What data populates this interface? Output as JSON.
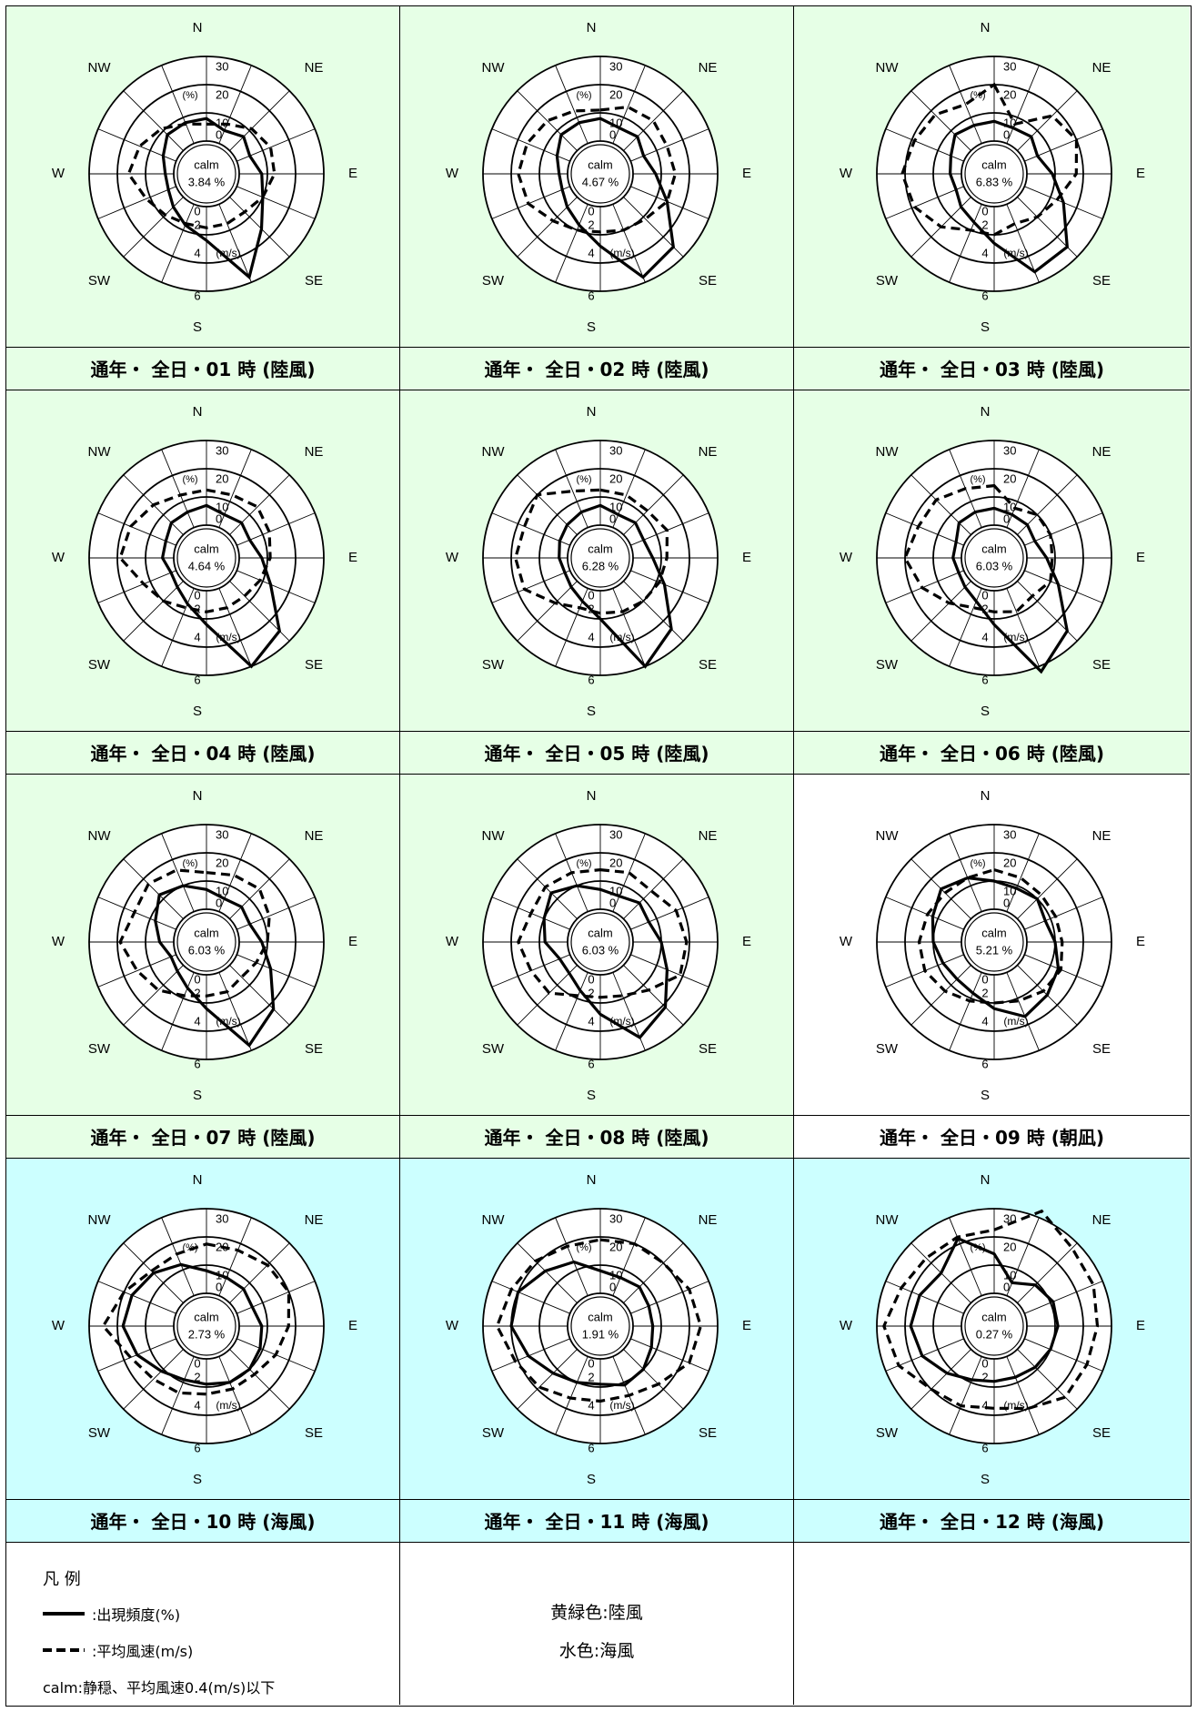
{
  "colors": {
    "land_breeze_bg": "#E6FFE6",
    "sea_breeze_bg": "#CCFFFF",
    "calm_bg": "#FFFFFF",
    "line": "#000000"
  },
  "labels": {
    "N": "N",
    "NE": "NE",
    "E": "E",
    "SE": "SE",
    "S": "S",
    "SW": "SW",
    "W": "W",
    "NW": "NW",
    "freq_ticks": [
      "0",
      "10",
      "20",
      "30"
    ],
    "speed_ticks": [
      "0",
      "2",
      "4",
      "6"
    ],
    "freq_unit": "(%)",
    "speed_unit": "(m/s)",
    "calm": "calm"
  },
  "chart_data": [
    {
      "type": "radar",
      "title": "通年・ 全日・01 時 (陸風)",
      "bg": "land",
      "calm": "3.84 %",
      "freq": [
        8,
        5,
        7,
        5,
        8,
        10,
        16,
        28,
        12,
        8,
        5,
        3,
        3,
        5,
        8,
        8
      ],
      "speed": [
        1.2,
        1.5,
        2.2,
        2.6,
        2.5,
        2.0,
        1.5,
        1.5,
        1.5,
        1.5,
        1.8,
        2.3,
        3.2,
        2.8,
        2.2,
        1.5
      ]
    },
    {
      "type": "radar",
      "title": "通年・ 全日・02 時 (陸風)",
      "bg": "land",
      "calm": "4.67 %",
      "freq": [
        8,
        6,
        7,
        5,
        8,
        14,
        25,
        28,
        14,
        8,
        5,
        3,
        3,
        5,
        8,
        8
      ],
      "speed": [
        2.2,
        2.8,
        3.0,
        2.8,
        3.0,
        2.8,
        2.2,
        2.0,
        1.8,
        2.0,
        2.4,
        3.2,
        3.5,
        3.3,
        3.0,
        2.5
      ]
    },
    {
      "type": "radar",
      "title": "通年・ 全日・03 時 (陸風)",
      "bg": "land",
      "calm": "6.83 %",
      "freq": [
        7,
        6,
        7,
        5,
        9,
        15,
        25,
        26,
        13,
        7,
        5,
        3,
        4,
        5,
        8,
        7
      ],
      "speed": [
        4.0,
        1.5,
        3.5,
        4.0,
        3.5,
        2.5,
        2.0,
        1.5,
        2.0,
        2.0,
        3.0,
        3.8,
        4.2,
        3.8,
        3.6,
        3.0
      ]
    },
    {
      "type": "radar",
      "title": "通年・ 全日・04 時 (陸風)",
      "bg": "land",
      "calm": "4.64 %",
      "freq": [
        7,
        5,
        6,
        5,
        8,
        13,
        25,
        30,
        12,
        6,
        3,
        2,
        4,
        4,
        6,
        6
      ],
      "speed": [
        2.5,
        2.5,
        2.8,
        2.5,
        2.2,
        1.8,
        1.5,
        1.5,
        1.5,
        1.5,
        2.0,
        2.5,
        3.8,
        3.5,
        3.0,
        2.5
      ]
    },
    {
      "type": "radar",
      "title": "通年・ 全日・05 時 (陸風)",
      "bg": "land",
      "calm": "6.28 %",
      "freq": [
        7,
        5,
        6,
        5,
        7,
        13,
        24,
        30,
        10,
        5,
        3,
        2,
        3,
        4,
        5,
        6
      ],
      "speed": [
        2.5,
        2.5,
        2.4,
        2.8,
        2.4,
        2.2,
        2.0,
        1.8,
        1.6,
        1.5,
        2.2,
        3.5,
        3.7,
        3.5,
        4.0,
        2.8
      ]
    },
    {
      "type": "radar",
      "title": "通年・ 全日・06 時 (陸風)",
      "bg": "land",
      "calm": "6.03 %",
      "freq": [
        6,
        5,
        5,
        4,
        7,
        13,
        25,
        32,
        12,
        5,
        3,
        2,
        3,
        3,
        6,
        6
      ],
      "speed": [
        2.8,
        1.5,
        2.0,
        2.0,
        1.8,
        2.0,
        1.5,
        1.8,
        1.5,
        1.5,
        2.2,
        3.2,
        4.0,
        3.5,
        3.5,
        3.0
      ]
    },
    {
      "type": "radar",
      "title": "通年・ 全日・07 時 (陸風)",
      "bg": "land",
      "calm": "6.03 %",
      "freq": [
        7,
        5,
        6,
        5,
        8,
        13,
        22,
        28,
        12,
        6,
        3,
        2,
        5,
        8,
        12,
        10
      ],
      "speed": [
        2.6,
        2.8,
        3.0,
        2.5,
        2.0,
        1.5,
        1.2,
        1.5,
        1.5,
        1.8,
        2.5,
        3.0,
        3.8,
        3.2,
        3.5,
        3.2
      ]
    },
    {
      "type": "radar",
      "title": "通年・ 全日・08 時 (陸風)",
      "bg": "land",
      "calm": "6.03 %",
      "freq": [
        7,
        6,
        8,
        7,
        10,
        14,
        21,
        25,
        14,
        7,
        4,
        4,
        8,
        10,
        13,
        10
      ],
      "speed": [
        2.8,
        3.0,
        2.8,
        3.5,
        3.8,
        3.8,
        2.5,
        1.8,
        1.6,
        1.8,
        2.8,
        3.0,
        3.5,
        3.0,
        3.2,
        3.0
      ]
    },
    {
      "type": "radar",
      "title": "通年・ 全日・09 時 (朝凪)",
      "bg": "calm",
      "calm": "5.21 %",
      "freq": [
        10,
        9,
        10,
        8,
        10,
        13,
        15,
        17,
        12,
        8,
        7,
        8,
        10,
        12,
        15,
        13
      ],
      "speed": [
        2.8,
        2.6,
        2.4,
        2.4,
        2.5,
        2.8,
        2.6,
        2.2,
        2.0,
        2.2,
        2.6,
        3.0,
        3.0,
        2.8,
        2.6,
        2.6
      ]
    },
    {
      "type": "radar",
      "title": "通年・ 全日・10 時 (海風)",
      "bg": "sea",
      "calm": "2.73 %",
      "freq": [
        8,
        7,
        7,
        6,
        8,
        9,
        10,
        10,
        9,
        9,
        11,
        15,
        18,
        17,
        15,
        12
      ],
      "speed": [
        3.5,
        3.5,
        3.8,
        4.0,
        3.5,
        3.0,
        2.5,
        2.5,
        2.5,
        2.8,
        3.0,
        3.5,
        5.0,
        4.0,
        3.2,
        3.2
      ]
    },
    {
      "type": "radar",
      "title": "通年・ 全日・11 時 (海風)",
      "bg": "sea",
      "calm": "1.91 %",
      "freq": [
        8,
        7,
        8,
        7,
        7,
        8,
        10,
        11,
        9,
        10,
        12,
        16,
        20,
        20,
        16,
        13
      ],
      "speed": [
        3.8,
        4.0,
        4.0,
        4.5,
        4.8,
        4.5,
        3.5,
        3.0,
        3.0,
        3.2,
        3.8,
        4.2,
        5.0,
        4.5,
        4.2,
        3.8
      ]
    },
    {
      "type": "radar",
      "title": "通年・ 全日・12 時 (海風)",
      "bg": "sea",
      "calm": "0.27 %",
      "freq": [
        14,
        5,
        9,
        11,
        11,
        10,
        9,
        8,
        8,
        9,
        12,
        16,
        18,
        17,
        15,
        22
      ],
      "speed": [
        4.5,
        6.5,
        5.5,
        5.3,
        5.0,
        4.8,
        4.8,
        4.0,
        3.5,
        3.8,
        4.0,
        5.0,
        5.5,
        4.8,
        4.5,
        4.5
      ]
    }
  ],
  "legend": {
    "title": "凡 例",
    "freq_label": ":出現頻度(%)",
    "speed_label": ":平均風速(m/s)",
    "calm_note": "calm:静穏、平均風速0.4(m/s)以下",
    "land_note": "黄緑色:陸風",
    "sea_note": "水色:海風"
  }
}
